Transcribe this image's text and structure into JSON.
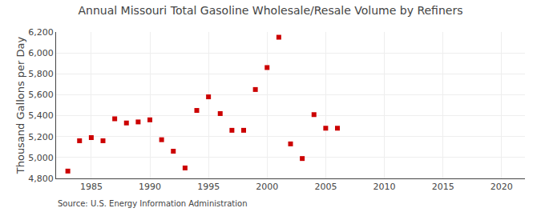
{
  "chart_data": {
    "type": "scatter",
    "title": "Annual Missouri Total Gasoline Wholesale/Resale Volume by Refiners",
    "ylabel": "Thousand Gallons per Day",
    "source": "Source: U.S. Energy Information Administration",
    "x": [
      1983,
      1984,
      1985,
      1986,
      1987,
      1988,
      1989,
      1990,
      1991,
      1992,
      1993,
      1994,
      1995,
      1996,
      1997,
      1998,
      1999,
      2000,
      2001,
      2002,
      2003,
      2004,
      2005,
      2006
    ],
    "values": [
      4870,
      5160,
      5190,
      5160,
      5370,
      5330,
      5340,
      5360,
      5170,
      5060,
      4900,
      5450,
      5580,
      5420,
      5260,
      5260,
      5650,
      5860,
      6150,
      5130,
      4990,
      5410,
      5280,
      5280
    ],
    "color": "#cc0000",
    "marker": "square",
    "xlim": [
      1982,
      2022
    ],
    "xticks": [
      1985,
      1990,
      1995,
      2000,
      2005,
      2010,
      2015,
      2020
    ],
    "ylim": [
      4800,
      6200
    ],
    "yticks": [
      {
        "value": 4800,
        "label": "4,800"
      },
      {
        "value": 5000,
        "label": "5,000"
      },
      {
        "value": 5200,
        "label": "5,200"
      },
      {
        "value": 5400,
        "label": "5,400"
      },
      {
        "value": 5600,
        "label": "5,600"
      },
      {
        "value": 5800,
        "label": "5,800"
      },
      {
        "value": 6000,
        "label": "6,000"
      },
      {
        "value": 6200,
        "label": "6,200"
      }
    ],
    "grid": true
  }
}
